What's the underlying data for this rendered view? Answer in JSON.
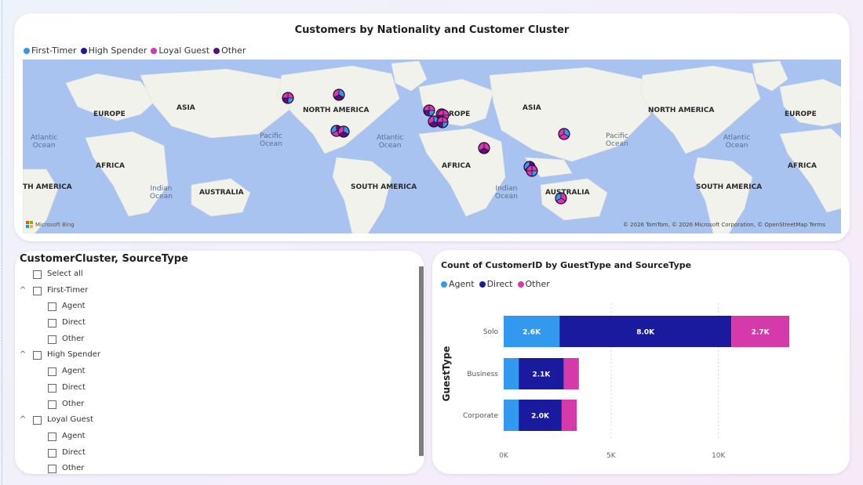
{
  "map": {
    "title": "Customers by Nationality and Customer Cluster",
    "legend": [
      {
        "name": "First-Timer",
        "color": "#3399ee"
      },
      {
        "name": "High Spender",
        "color": "#1a1a9e"
      },
      {
        "name": "Loyal Guest",
        "color": "#d63aaa"
      },
      {
        "name": "Other",
        "color": "#5a0f7a"
      }
    ],
    "continent_labels": [
      "EUROPE",
      "ASIA",
      "NORTH AMERICA",
      "AFRICA",
      "TH AMERICA",
      "AUSTRALIA",
      "SOUTH AMERICA",
      "ROPE",
      "ASIA",
      "AFRICA",
      "SOUTH AMERICA",
      "AUSTRALIA",
      "NORTH AMERICA",
      "EUROPE",
      "AFRICA"
    ],
    "ocean_labels": [
      "Atlantic\nOcean",
      "Pacific\nOcean",
      "Atlantic\nOcean",
      "Indian\nOcean",
      "Indian\nOcean",
      "Pacific\nOcean",
      "Atlantic\nOcean"
    ],
    "provider": "Microsoft Bing",
    "attribution": "© 2026 TomTom, © 2026 Microsoft Corporation, © OpenStreetMap  Terms",
    "markers_count": 14
  },
  "slicer": {
    "title": "CustomerCluster, SourceType",
    "rows": [
      {
        "label": "Select all",
        "level": 0,
        "expander": false
      },
      {
        "label": "First-Timer",
        "level": 0,
        "expander": true
      },
      {
        "label": "Agent",
        "level": 1,
        "expander": false
      },
      {
        "label": "Direct",
        "level": 1,
        "expander": false
      },
      {
        "label": "Other",
        "level": 1,
        "expander": false
      },
      {
        "label": "High Spender",
        "level": 0,
        "expander": true
      },
      {
        "label": "Agent",
        "level": 1,
        "expander": false
      },
      {
        "label": "Direct",
        "level": 1,
        "expander": false
      },
      {
        "label": "Other",
        "level": 1,
        "expander": false
      },
      {
        "label": "Loyal Guest",
        "level": 0,
        "expander": true
      },
      {
        "label": "Agent",
        "level": 1,
        "expander": false
      },
      {
        "label": "Direct",
        "level": 1,
        "expander": false
      },
      {
        "label": "Other",
        "level": 1,
        "expander": false
      }
    ]
  },
  "chart_data": {
    "type": "bar",
    "orientation": "horizontal",
    "stacked": true,
    "title": "Count of CustomerID by GuestType and SourceType",
    "ylabel": "GuestType",
    "xlabel": "",
    "categories": [
      "Solo",
      "Business",
      "Corporate"
    ],
    "series": [
      {
        "name": "Agent",
        "color": "#3399ee",
        "values": [
          2600,
          700,
          700
        ],
        "labels": [
          "2.6K",
          "",
          ""
        ]
      },
      {
        "name": "Direct",
        "color": "#1a1a9e",
        "values": [
          8000,
          2100,
          2000
        ],
        "labels": [
          "8.0K",
          "2.1K",
          "2.0K"
        ]
      },
      {
        "name": "Other",
        "color": "#d63aaa",
        "values": [
          2700,
          700,
          700
        ],
        "labels": [
          "2.7K",
          "",
          ""
        ]
      }
    ],
    "xticks": [
      "0K",
      "5K",
      "10K"
    ],
    "xtick_values": [
      0,
      5000,
      10000
    ],
    "xlim": [
      0,
      15000
    ],
    "legend_position": "top-left",
    "grid": true
  }
}
